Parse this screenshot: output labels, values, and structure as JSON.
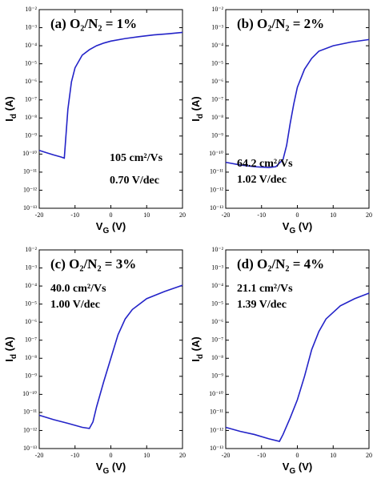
{
  "chart_data": [
    {
      "type": "line",
      "title": "(a) O₂/N₂ = 1%",
      "xlabel": "VG (V)",
      "ylabel": "Id (A)",
      "annotations": [
        "105 cm²/Vs",
        "0.70 V/dec"
      ],
      "y_scale": "log",
      "xlim": [
        -20,
        20
      ],
      "xticks": [
        -20,
        -10,
        0,
        10,
        20
      ],
      "ylim": [
        1e-13,
        0.01
      ],
      "yticks": [
        {
          "value": 1e-13,
          "label": "10⁻¹³"
        },
        {
          "value": 1e-12,
          "label": "10⁻¹²"
        },
        {
          "value": 1e-11,
          "label": "10⁻¹¹"
        },
        {
          "value": 1e-10,
          "label": "10⁻¹⁰"
        },
        {
          "value": 1e-09,
          "label": "10⁻⁹"
        },
        {
          "value": 1e-08,
          "label": "10⁻⁸"
        },
        {
          "value": 1e-07,
          "label": "10⁻⁷"
        },
        {
          "value": 1e-06,
          "label": "10⁻⁶"
        },
        {
          "value": 1e-05,
          "label": "10⁻⁵"
        },
        {
          "value": 0.0001,
          "label": "10⁻⁴"
        },
        {
          "value": 0.001,
          "label": "10⁻³"
        },
        {
          "value": 0.01,
          "label": "10⁻²"
        }
      ],
      "x": [
        -20,
        -18,
        -16,
        -14,
        -13,
        -12,
        -11,
        -10,
        -8,
        -6,
        -4,
        -2,
        0,
        4,
        8,
        12,
        16,
        20
      ],
      "color": "#2323c8",
      "values": [
        1.6e-10,
        1.2e-10,
        9e-11,
        7e-11,
        6e-11,
        3e-08,
        1e-06,
        6e-06,
        3e-05,
        6e-05,
        0.0001,
        0.00014,
        0.00018,
        0.00025,
        0.00032,
        0.0004,
        0.00046,
        0.00055
      ]
    },
    {
      "type": "line",
      "title": "(b) O₂/N₂ = 2%",
      "xlabel": "VG (V)",
      "ylabel": "Id (A)",
      "annotations": [
        "64.2 cm²/Vs",
        "1.02 V/dec"
      ],
      "y_scale": "log",
      "xlim": [
        -20,
        20
      ],
      "xticks": [
        -20,
        -10,
        0,
        10,
        20
      ],
      "ylim": [
        1e-13,
        0.01
      ],
      "yticks": [
        {
          "value": 1e-13,
          "label": "10⁻¹³"
        },
        {
          "value": 1e-12,
          "label": "10⁻¹²"
        },
        {
          "value": 1e-11,
          "label": "10⁻¹¹"
        },
        {
          "value": 1e-10,
          "label": "10⁻¹⁰"
        },
        {
          "value": 1e-09,
          "label": "10⁻⁹"
        },
        {
          "value": 1e-08,
          "label": "10⁻⁸"
        },
        {
          "value": 1e-07,
          "label": "10⁻⁷"
        },
        {
          "value": 1e-06,
          "label": "10⁻⁶"
        },
        {
          "value": 1e-05,
          "label": "10⁻⁵"
        },
        {
          "value": 0.0001,
          "label": "10⁻⁴"
        },
        {
          "value": 0.001,
          "label": "10⁻³"
        },
        {
          "value": 0.01,
          "label": "10⁻²"
        }
      ],
      "x": [
        -20,
        -16,
        -12,
        -8,
        -6,
        -4,
        -3,
        -2,
        -1,
        0,
        2,
        4,
        6,
        10,
        15,
        20
      ],
      "color": "#2323c8",
      "values": [
        3.5e-11,
        2.5e-11,
        2e-11,
        1.8e-11,
        2e-11,
        5e-11,
        3e-10,
        5e-09,
        6e-08,
        5e-07,
        5e-06,
        2e-05,
        5e-05,
        0.0001,
        0.00016,
        0.00022
      ]
    },
    {
      "type": "line",
      "title": "(c) O₂/N₂ = 3%",
      "xlabel": "VG (V)",
      "ylabel": "Id (A)",
      "annotations": [
        "40.0 cm²/Vs",
        "1.00 V/dec"
      ],
      "y_scale": "log",
      "xlim": [
        -20,
        20
      ],
      "xticks": [
        -20,
        -10,
        0,
        10,
        20
      ],
      "ylim": [
        1e-13,
        0.01
      ],
      "yticks": [
        {
          "value": 1e-13,
          "label": "10⁻¹³"
        },
        {
          "value": 1e-12,
          "label": "10⁻¹²"
        },
        {
          "value": 1e-11,
          "label": "10⁻¹¹"
        },
        {
          "value": 1e-10,
          "label": "10⁻¹⁰"
        },
        {
          "value": 1e-09,
          "label": "10⁻⁹"
        },
        {
          "value": 1e-08,
          "label": "10⁻⁸"
        },
        {
          "value": 1e-07,
          "label": "10⁻⁷"
        },
        {
          "value": 1e-06,
          "label": "10⁻⁶"
        },
        {
          "value": 1e-05,
          "label": "10⁻⁵"
        },
        {
          "value": 0.0001,
          "label": "10⁻⁴"
        },
        {
          "value": 0.001,
          "label": "10⁻³"
        },
        {
          "value": 0.01,
          "label": "10⁻²"
        }
      ],
      "x": [
        -20,
        -16,
        -12,
        -8,
        -6,
        -5,
        -4,
        -2,
        0,
        2,
        4,
        6,
        10,
        15,
        20
      ],
      "color": "#2323c8",
      "values": [
        7e-12,
        4e-12,
        2.5e-12,
        1.5e-12,
        1.3e-12,
        3e-12,
        2e-11,
        5e-10,
        1e-08,
        2e-07,
        1.5e-06,
        5e-06,
        2e-05,
        5e-05,
        0.00011
      ]
    },
    {
      "type": "line",
      "title": "(d) O₂/N₂ = 4%",
      "xlabel": "VG (V)",
      "ylabel": "Id (A)",
      "annotations": [
        "21.1 cm²/Vs",
        "1.39 V/dec"
      ],
      "y_scale": "log",
      "xlim": [
        -20,
        20
      ],
      "xticks": [
        -20,
        -10,
        0,
        10,
        20
      ],
      "ylim": [
        1e-13,
        0.01
      ],
      "yticks": [
        {
          "value": 1e-13,
          "label": "10⁻¹³"
        },
        {
          "value": 1e-12,
          "label": "10⁻¹²"
        },
        {
          "value": 1e-11,
          "label": "10⁻¹¹"
        },
        {
          "value": 1e-10,
          "label": "10⁻¹⁰"
        },
        {
          "value": 1e-09,
          "label": "10⁻⁹"
        },
        {
          "value": 1e-08,
          "label": "10⁻⁸"
        },
        {
          "value": 1e-07,
          "label": "10⁻⁷"
        },
        {
          "value": 1e-06,
          "label": "10⁻⁶"
        },
        {
          "value": 1e-05,
          "label": "10⁻⁵"
        },
        {
          "value": 0.0001,
          "label": "10⁻⁴"
        },
        {
          "value": 0.001,
          "label": "10⁻³"
        },
        {
          "value": 0.01,
          "label": "10⁻²"
        }
      ],
      "x": [
        -20,
        -16,
        -12,
        -8,
        -5,
        -4,
        -2,
        0,
        2,
        4,
        6,
        8,
        12,
        16,
        20
      ],
      "color": "#2323c8",
      "values": [
        1.5e-12,
        9e-13,
        6e-13,
        3.5e-13,
        2.5e-13,
        6e-13,
        5e-12,
        5e-11,
        1e-09,
        3e-08,
        3e-07,
        1.5e-06,
        8e-06,
        2e-05,
        4e-05
      ]
    }
  ]
}
